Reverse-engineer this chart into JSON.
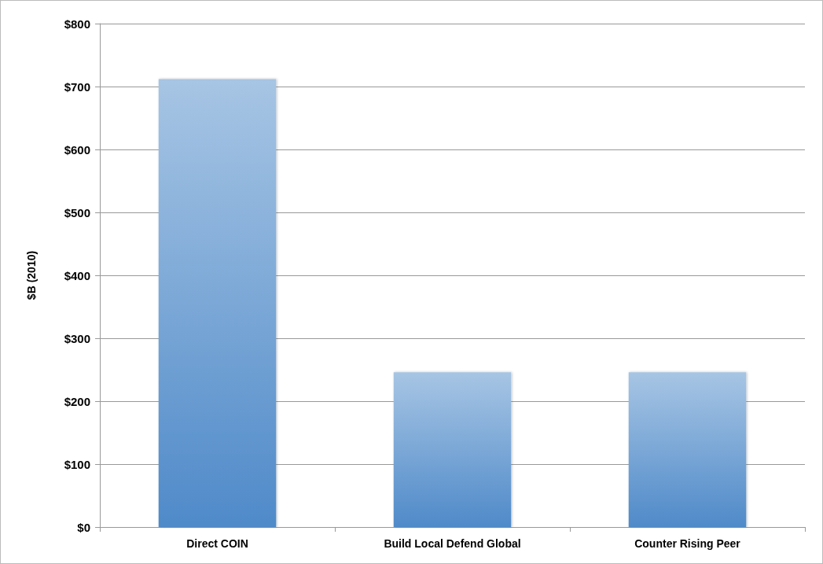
{
  "chart_data": {
    "type": "bar",
    "ylabel": "$B (2010)",
    "categories": [
      "Direct COIN",
      "Build Local Defend Global",
      "Counter Rising Peer"
    ],
    "values": [
      712,
      246,
      246
    ],
    "color": "#4f8ac9",
    "ylim": [
      0,
      800
    ],
    "yticks": [
      {
        "value": 0,
        "label": "$0"
      },
      {
        "value": 100,
        "label": "$100"
      },
      {
        "value": 200,
        "label": "$200"
      },
      {
        "value": 300,
        "label": "$300"
      },
      {
        "value": 400,
        "label": "$400"
      },
      {
        "value": 500,
        "label": "$500"
      },
      {
        "value": 600,
        "label": "$600"
      },
      {
        "value": 700,
        "label": "$700"
      },
      {
        "value": 800,
        "label": "$800"
      }
    ],
    "grid": "y"
  }
}
